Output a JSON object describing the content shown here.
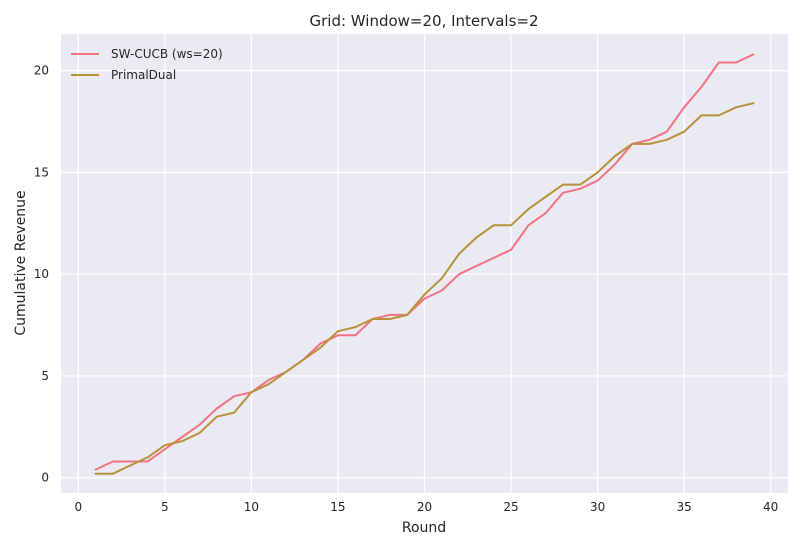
{
  "chart_data": {
    "type": "line",
    "title": "Grid: Window=20, Intervals=2",
    "xlabel": "Round",
    "ylabel": "Cumulative Revenue",
    "xlim": [
      -1,
      41
    ],
    "ylim": [
      -0.75,
      21.8
    ],
    "xticks": [
      0,
      5,
      10,
      15,
      20,
      25,
      30,
      35,
      40
    ],
    "yticks": [
      0,
      5,
      10,
      15,
      20
    ],
    "grid": true,
    "legend_position": "top-left",
    "x": [
      1,
      2,
      3,
      4,
      5,
      6,
      7,
      8,
      9,
      10,
      11,
      12,
      13,
      14,
      15,
      16,
      17,
      18,
      19,
      20,
      21,
      22,
      23,
      24,
      25,
      26,
      27,
      28,
      29,
      30,
      31,
      32,
      33,
      34,
      35,
      36,
      37,
      38,
      39
    ],
    "series": [
      {
        "name": "SW-CUCB (ws=20)",
        "color": "#f07283",
        "values": [
          0.4,
          0.8,
          0.8,
          0.8,
          1.4,
          2.0,
          2.6,
          3.4,
          4.0,
          4.2,
          4.8,
          5.2,
          5.8,
          6.6,
          7.0,
          7.0,
          7.8,
          8.0,
          8.0,
          8.8,
          9.2,
          10.0,
          10.4,
          10.8,
          11.2,
          12.4,
          13.0,
          14.0,
          14.2,
          14.6,
          15.4,
          16.4,
          16.6,
          17.0,
          18.2,
          19.2,
          20.4,
          20.4,
          20.8
        ]
      },
      {
        "name": "PrimalDual",
        "color": "#b8913a",
        "values": [
          0.2,
          0.2,
          0.6,
          1.0,
          1.6,
          1.8,
          2.2,
          3.0,
          3.2,
          4.2,
          4.6,
          5.2,
          5.8,
          6.4,
          7.2,
          7.4,
          7.8,
          7.8,
          8.0,
          9.0,
          9.8,
          11.0,
          11.8,
          12.4,
          12.4,
          13.2,
          13.8,
          14.4,
          14.4,
          15.0,
          15.8,
          16.4,
          16.4,
          16.6,
          17.0,
          17.8,
          17.8,
          18.2,
          18.4
        ]
      }
    ]
  }
}
